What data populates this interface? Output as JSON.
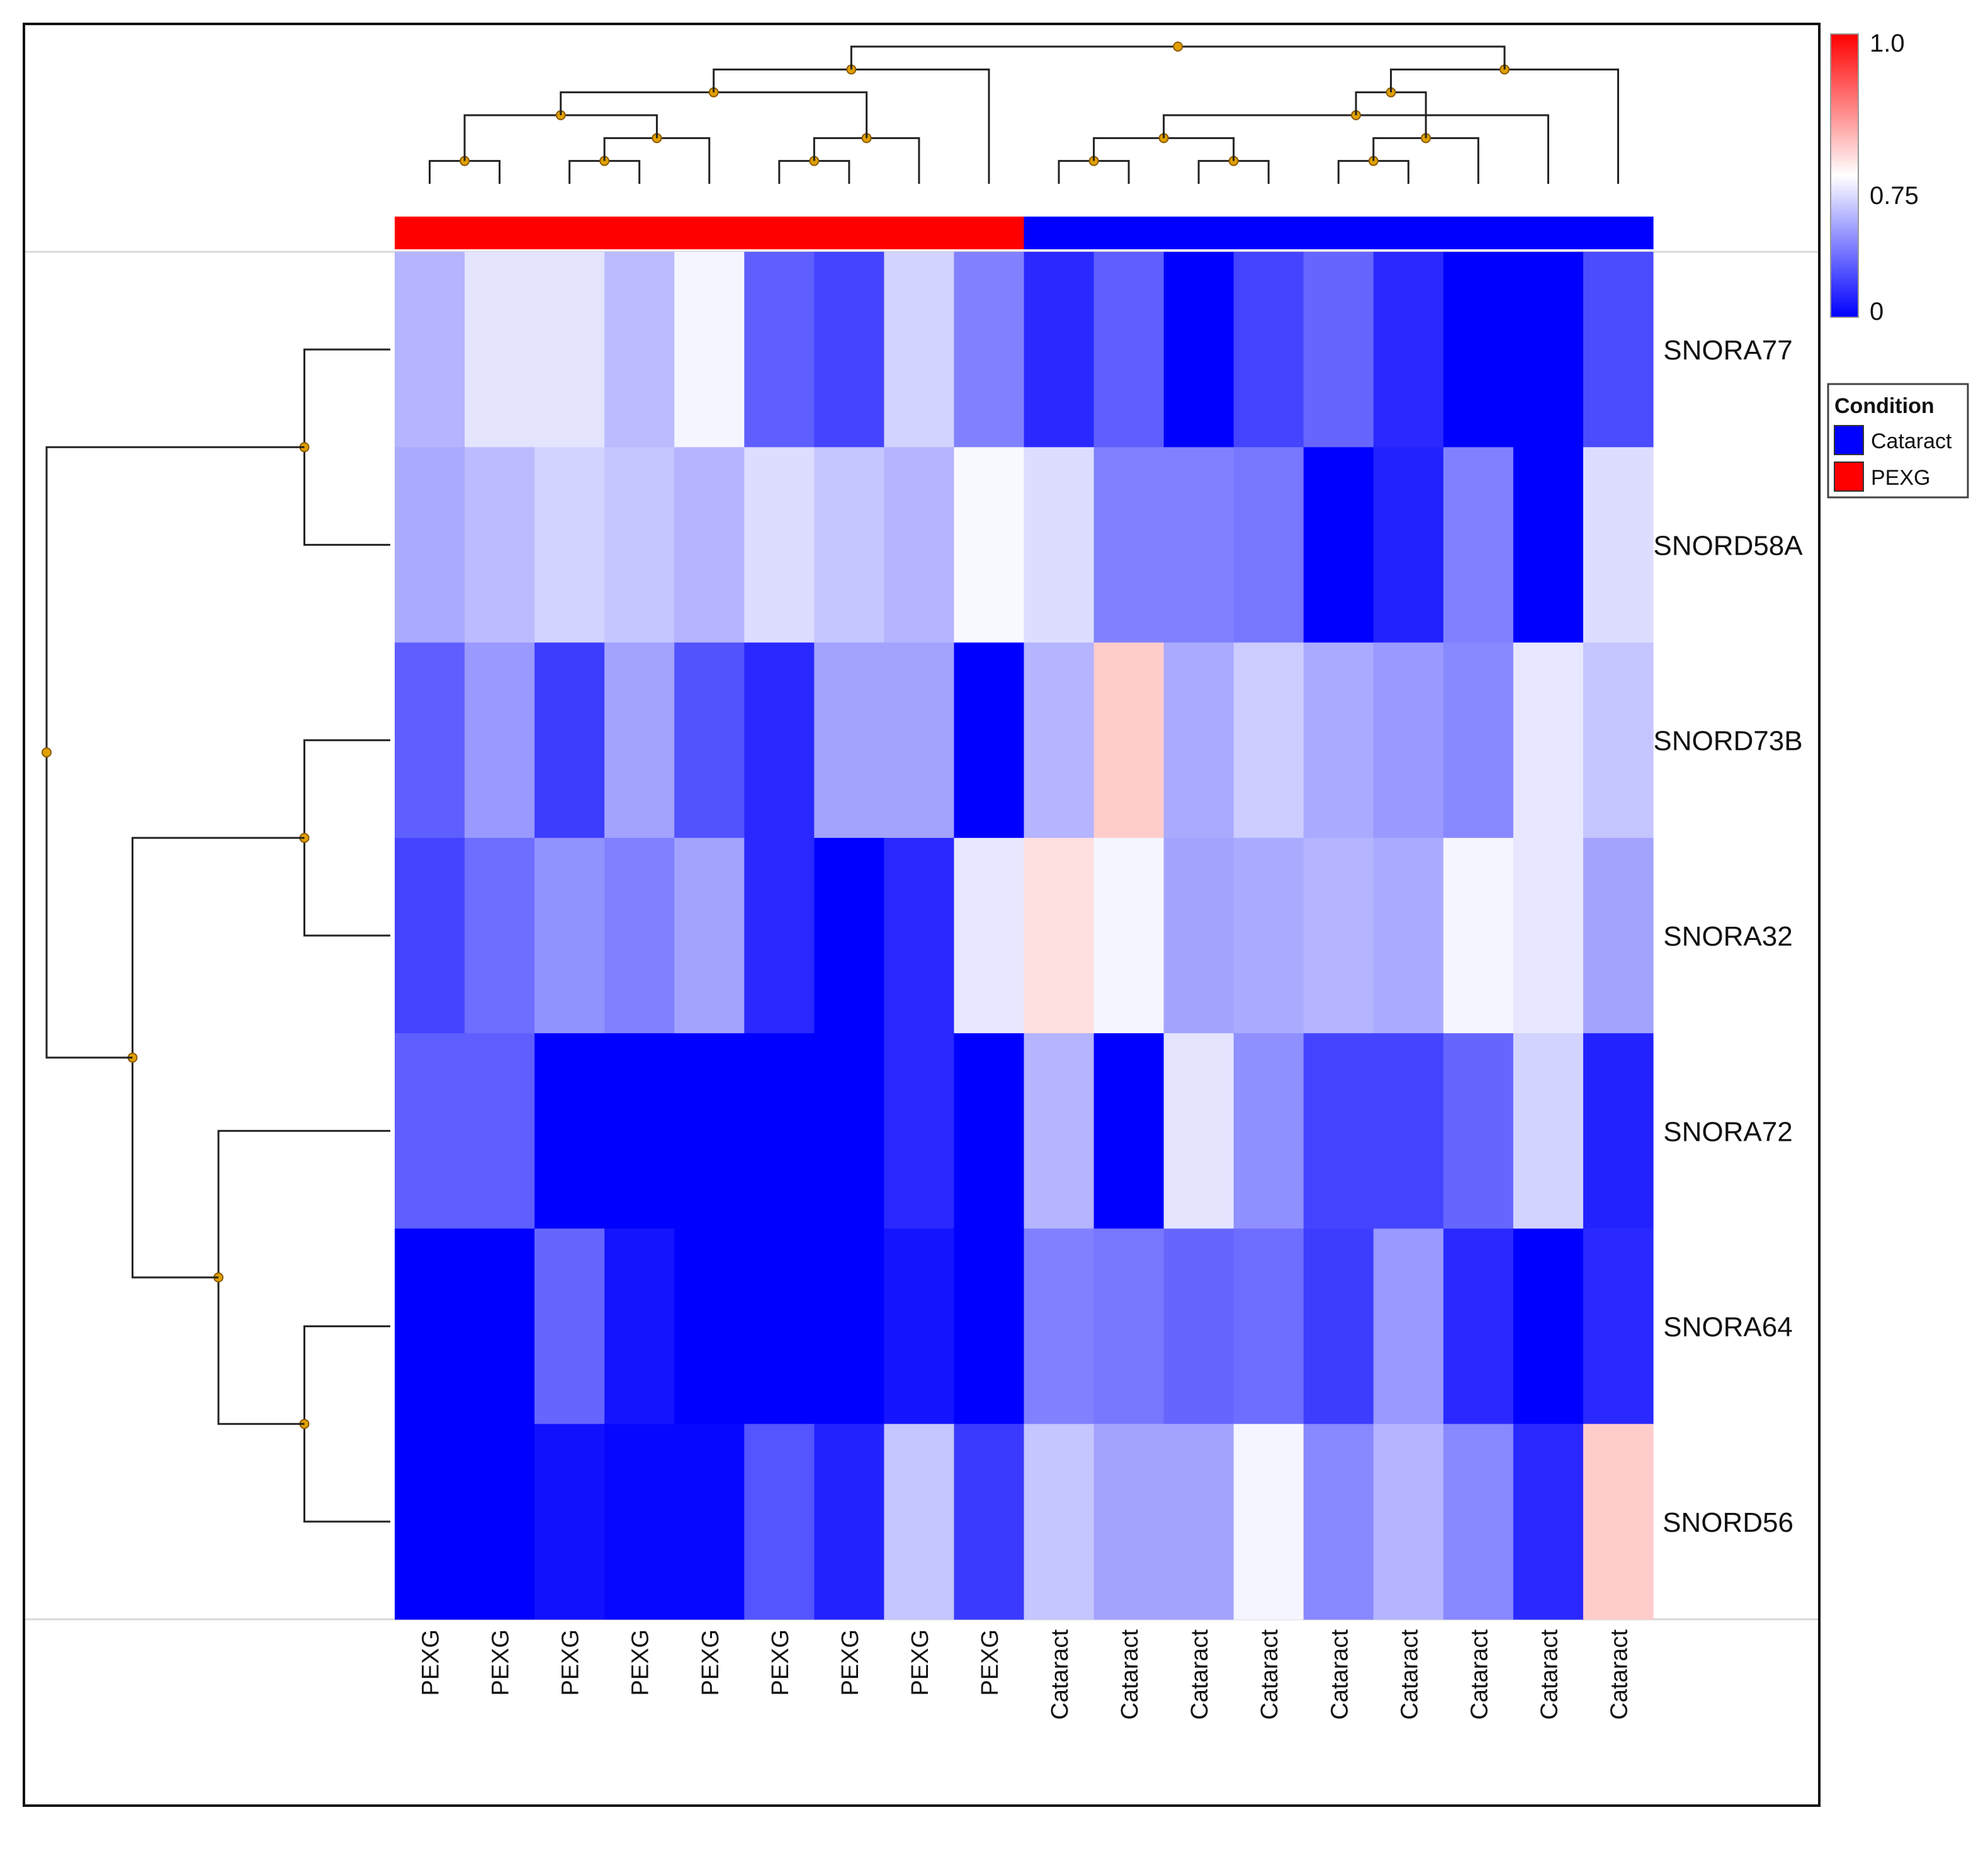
{
  "chart_data": {
    "type": "heatmap",
    "title": "",
    "columns": [
      "PEXG",
      "PEXG",
      "PEXG",
      "PEXG",
      "PEXG",
      "PEXG",
      "PEXG",
      "PEXG",
      "PEXG",
      "Cataract",
      "Cataract",
      "Cataract",
      "Cataract",
      "Cataract",
      "Cataract",
      "Cataract",
      "Cataract",
      "Cataract"
    ],
    "column_condition": [
      "PEXG",
      "PEXG",
      "PEXG",
      "PEXG",
      "PEXG",
      "PEXG",
      "PEXG",
      "PEXG",
      "PEXG",
      "Cataract",
      "Cataract",
      "Cataract",
      "Cataract",
      "Cataract",
      "Cataract",
      "Cataract",
      "Cataract",
      "Cataract"
    ],
    "rows": [
      "SNORA77",
      "SNORD58A",
      "SNORD73B",
      "SNORA32",
      "SNORA72",
      "SNORA64",
      "SNORD56"
    ],
    "values": [
      [
        0.53,
        0.67,
        0.67,
        0.55,
        0.72,
        0.28,
        0.2,
        0.62,
        0.38,
        0.12,
        0.28,
        0.0,
        0.2,
        0.3,
        0.12,
        0.0,
        0.0,
        0.22
      ],
      [
        0.5,
        0.55,
        0.62,
        0.58,
        0.53,
        0.65,
        0.58,
        0.53,
        0.73,
        0.65,
        0.38,
        0.38,
        0.35,
        0.0,
        0.1,
        0.38,
        0.0,
        0.65
      ],
      [
        0.28,
        0.45,
        0.18,
        0.48,
        0.24,
        0.12,
        0.48,
        0.48,
        0.0,
        0.53,
        0.8,
        0.5,
        0.6,
        0.5,
        0.45,
        0.4,
        0.68,
        0.58
      ],
      [
        0.2,
        0.32,
        0.43,
        0.38,
        0.48,
        0.12,
        0.0,
        0.12,
        0.68,
        0.78,
        0.72,
        0.48,
        0.5,
        0.53,
        0.5,
        0.72,
        0.68,
        0.48
      ],
      [
        0.28,
        0.28,
        0.0,
        0.0,
        0.0,
        0.0,
        0.0,
        0.12,
        0.0,
        0.53,
        0.0,
        0.67,
        0.42,
        0.2,
        0.2,
        0.3,
        0.62,
        0.1
      ],
      [
        0.0,
        0.0,
        0.3,
        0.06,
        0.0,
        0.0,
        0.0,
        0.06,
        0.0,
        0.38,
        0.35,
        0.3,
        0.32,
        0.18,
        0.45,
        0.12,
        0.0,
        0.12
      ],
      [
        0.0,
        0.0,
        0.05,
        0.02,
        0.02,
        0.25,
        0.1,
        0.58,
        0.17,
        0.58,
        0.48,
        0.48,
        0.72,
        0.4,
        0.53,
        0.4,
        0.12,
        0.8
      ]
    ],
    "row_dendrogram": [
      [
        0,
        1
      ],
      [
        2,
        3
      ],
      [
        5,
        6
      ],
      [
        4,
        "n3"
      ],
      [
        "n2",
        "n4"
      ],
      [
        "n1",
        "n5"
      ]
    ],
    "column_dendrogram": [
      [
        0,
        1
      ],
      [
        3,
        2
      ],
      [
        4,
        "n2"
      ],
      [
        "n1",
        "n3"
      ],
      [
        5,
        6
      ],
      [
        7,
        "n5"
      ],
      [
        "n4",
        "n6"
      ],
      [
        8,
        "n7"
      ],
      [
        9,
        10
      ],
      [
        13,
        14
      ],
      [
        15,
        "n10"
      ],
      [
        11,
        12
      ],
      [
        "n9",
        "n12"
      ],
      [
        16,
        "n13"
      ],
      [
        "n11",
        "n14"
      ],
      [
        17,
        "n15"
      ],
      [
        "n8",
        "n16"
      ]
    ],
    "colorbar": {
      "ticks": [
        "1.0",
        "0.75",
        "0"
      ],
      "colors": {
        "low": "#0000ff",
        "mid": "#ffffff",
        "high": "#ff0000"
      }
    },
    "legend": {
      "title": "Condition",
      "items": [
        {
          "label": "Cataract",
          "color": "#0000ff"
        },
        {
          "label": "PEXG",
          "color": "#ff0000"
        }
      ]
    }
  }
}
